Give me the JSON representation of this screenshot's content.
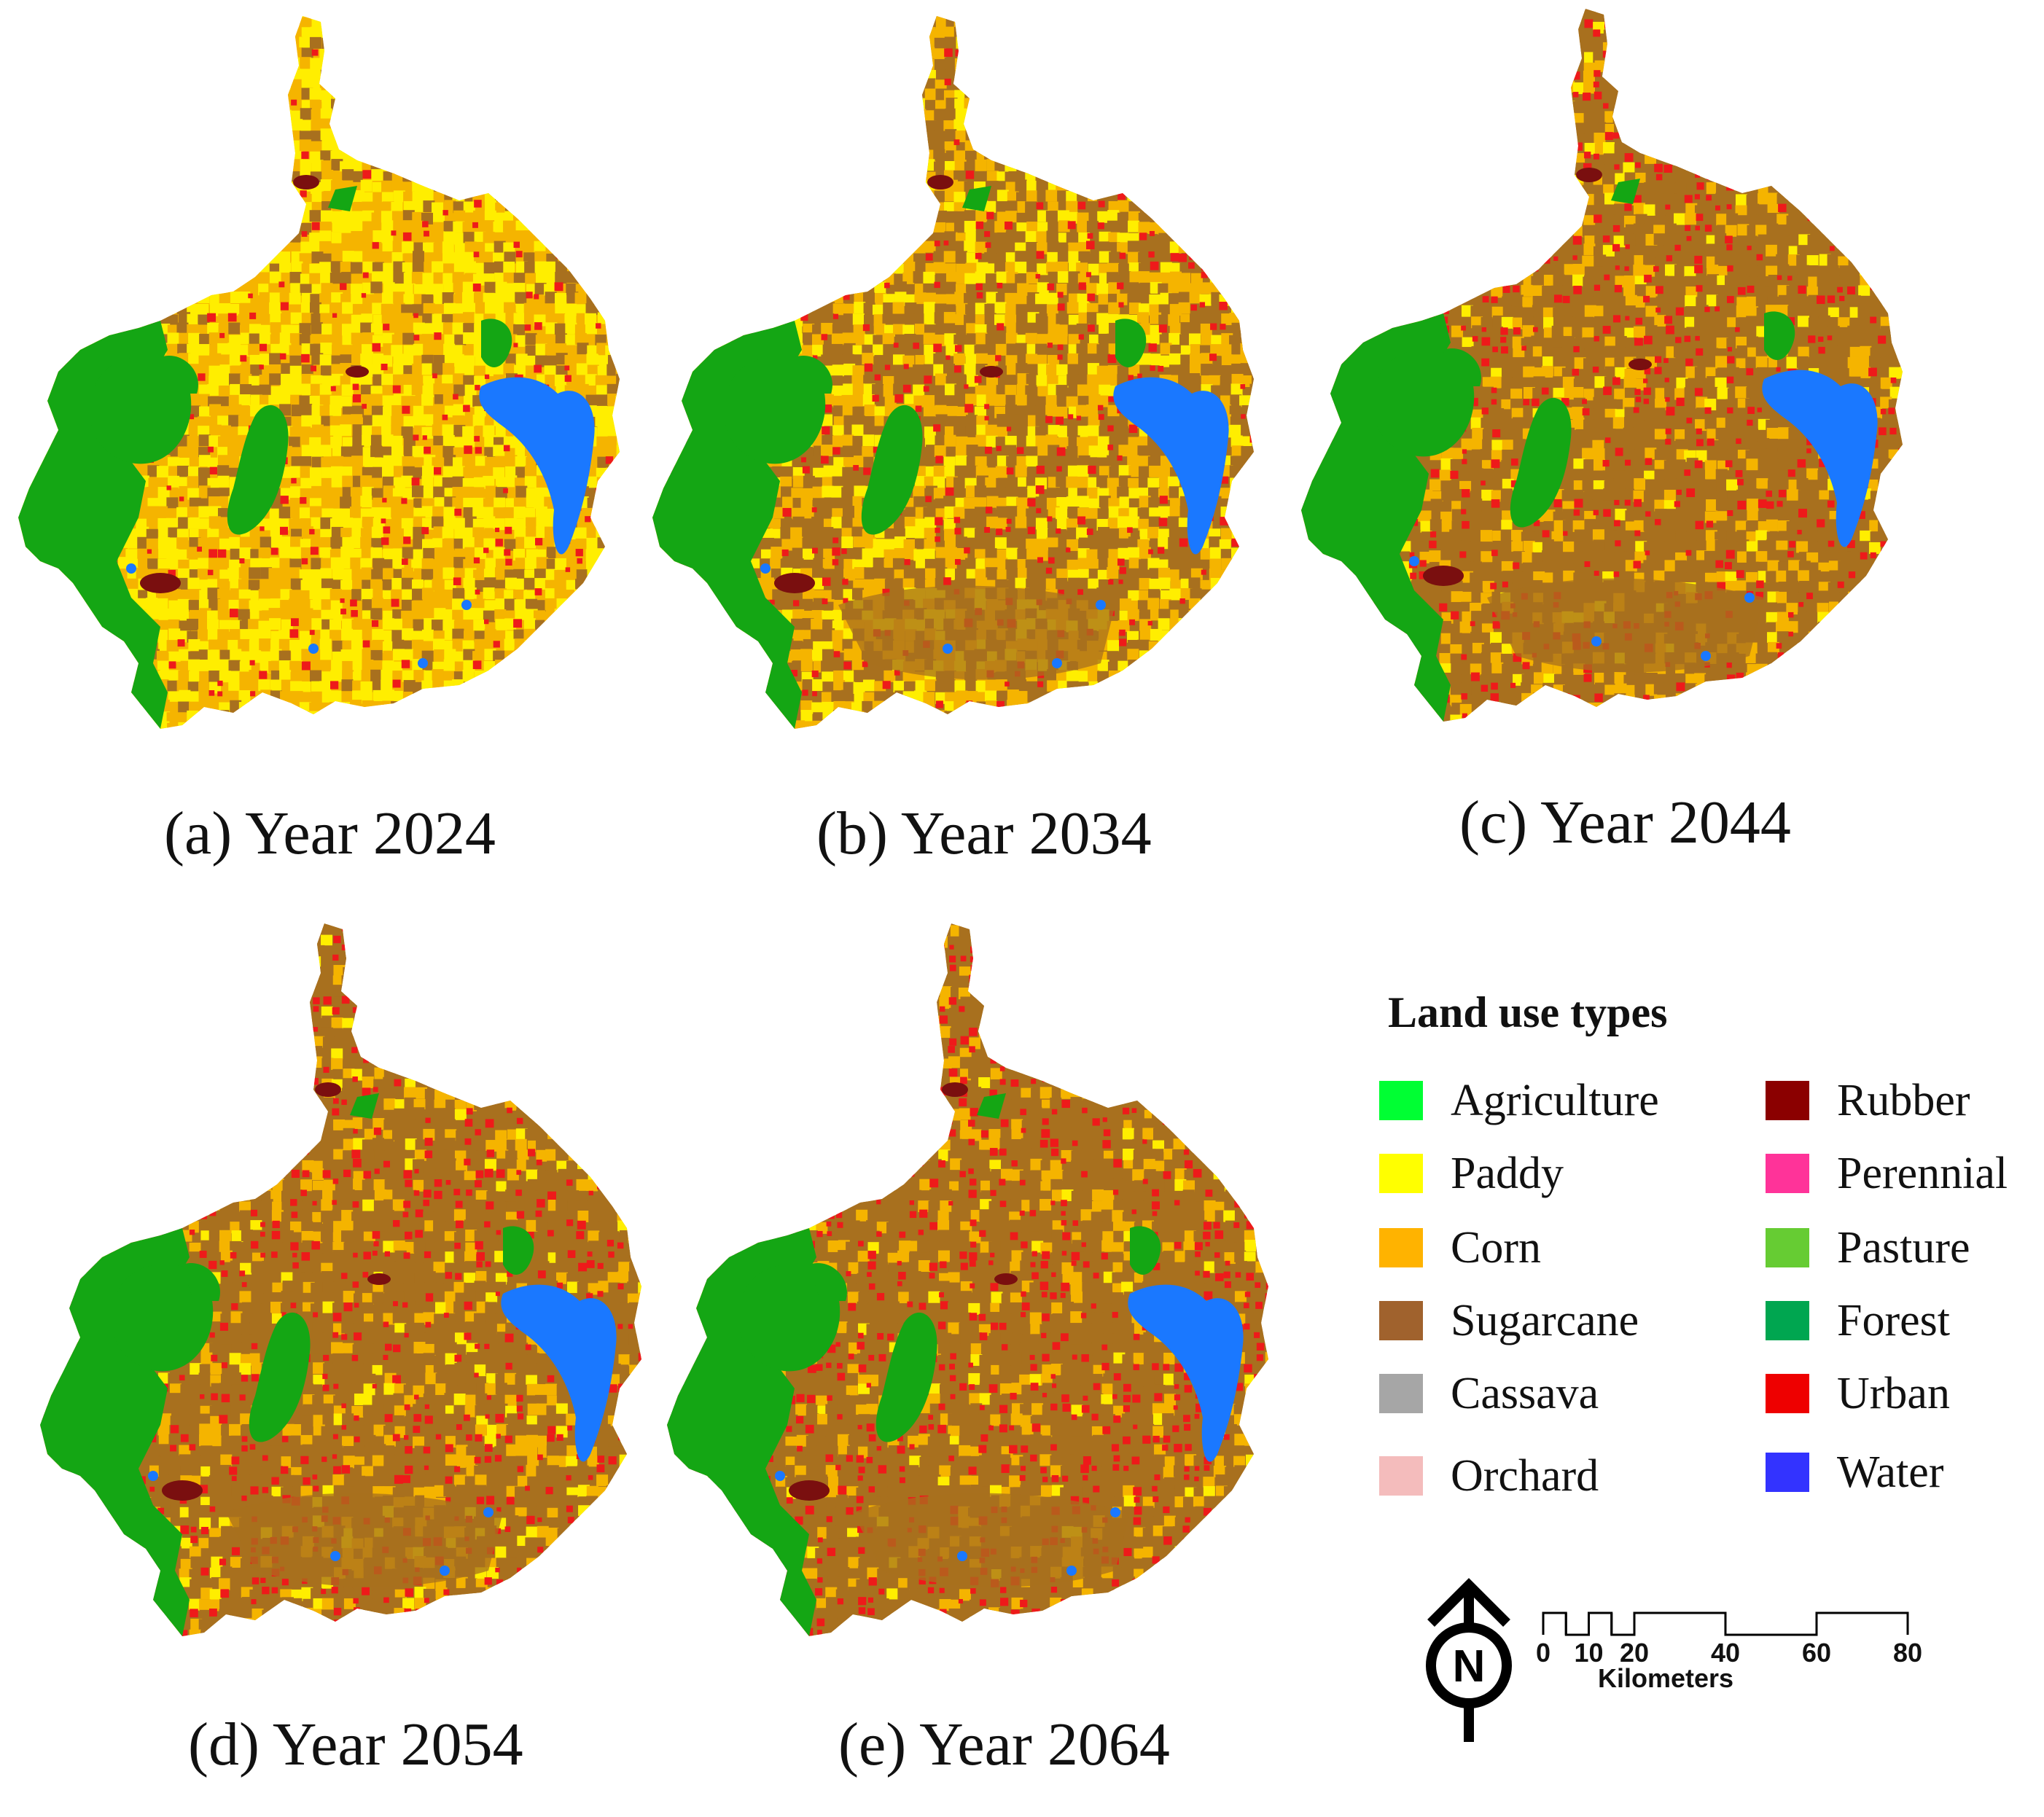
{
  "panels": [
    {
      "id": "a",
      "caption": "(a) Year 2024",
      "mix": {
        "paddy": 0.4,
        "corn": 0.34,
        "sugarcane": 0.18,
        "urban": 0.08
      }
    },
    {
      "id": "b",
      "caption": "(b) Year 2034",
      "mix": {
        "paddy": 0.2,
        "corn": 0.32,
        "sugarcane": 0.36,
        "urban": 0.12
      }
    },
    {
      "id": "c",
      "caption": "(c) Year 2044",
      "mix": {
        "paddy": 0.05,
        "corn": 0.2,
        "sugarcane": 0.58,
        "urban": 0.17
      }
    },
    {
      "id": "d",
      "caption": "(d) Year 2054",
      "mix": {
        "paddy": 0.05,
        "corn": 0.16,
        "sugarcane": 0.58,
        "urban": 0.21
      }
    },
    {
      "id": "e",
      "caption": "(e) Year 2064",
      "mix": {
        "paddy": 0.03,
        "corn": 0.14,
        "sugarcane": 0.58,
        "urban": 0.25
      }
    }
  ],
  "legend": {
    "title": "Land use types",
    "items": [
      {
        "label": "Agriculture",
        "color": "#00ff33"
      },
      {
        "label": "Paddy",
        "color": "#ffff00"
      },
      {
        "label": "Corn",
        "color": "#ffb300"
      },
      {
        "label": "Sugarcane",
        "color": "#a0622d"
      },
      {
        "label": "Cassava",
        "color": "#a6a6a6"
      },
      {
        "label": "Orchard",
        "color": "#f4bcbc"
      },
      {
        "label": "Rubber",
        "color": "#8b0000"
      },
      {
        "label": "Perennial",
        "color": "#ff3399"
      },
      {
        "label": "Pasture",
        "color": "#66cc33"
      },
      {
        "label": "Forest",
        "color": "#00a650"
      },
      {
        "label": "Urban",
        "color": "#ee0000"
      },
      {
        "label": "Water",
        "color": "#3333ff"
      }
    ]
  },
  "map_colors": {
    "forest": "#14a614",
    "water": "#1a78ff",
    "paddy": "#ffee00",
    "corn": "#f5b400",
    "sugarcane": "#a8701e",
    "urban": "#ee1a1a"
  },
  "north_arrow": {
    "letter": "N"
  },
  "scale": {
    "ticks": [
      "0",
      "10",
      "20",
      "40",
      "60",
      "80"
    ],
    "tick_values": [
      0,
      10,
      20,
      40,
      60,
      80
    ],
    "unit": "Kilometers"
  }
}
